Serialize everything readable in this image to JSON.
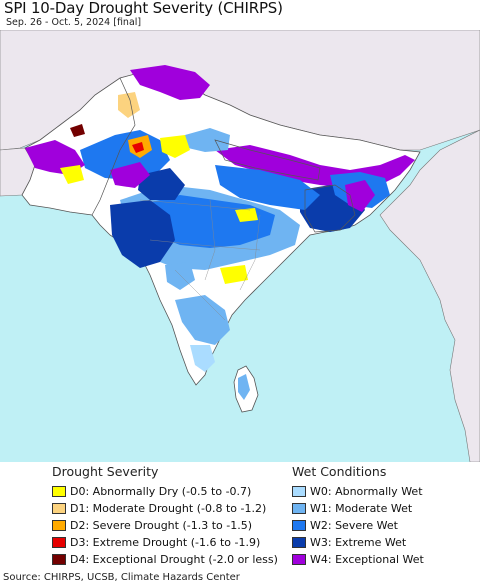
{
  "header": {
    "title": "SPI 10-Day Drought Severity (CHIRPS)",
    "subtitle": "Sep. 26 - Oct. 5, 2024 [final]"
  },
  "legend": {
    "drought": {
      "title": "Drought Severity",
      "items": [
        {
          "code": "D0",
          "label": "D0: Abnormally Dry (-0.5 to -0.7)",
          "color": "#ffff00"
        },
        {
          "code": "D1",
          "label": "D1: Moderate Drought (-0.8 to -1.2)",
          "color": "#fcd37f"
        },
        {
          "code": "D2",
          "label": "D2: Severe Drought (-1.3 to -1.5)",
          "color": "#ffaa00"
        },
        {
          "code": "D3",
          "label": "D3: Extreme Drought (-1.6 to -1.9)",
          "color": "#e60000"
        },
        {
          "code": "D4",
          "label": "D4: Exceptional Drought (-2.0 or less)",
          "color": "#730000"
        }
      ]
    },
    "wet": {
      "title": "Wet Conditions",
      "items": [
        {
          "code": "W0",
          "label": "W0: Abnormally Wet",
          "color": "#aadcff"
        },
        {
          "code": "W1",
          "label": "W1: Moderate Wet",
          "color": "#6fb4f2"
        },
        {
          "code": "W2",
          "label": "W2: Severe Wet",
          "color": "#1e78f0"
        },
        {
          "code": "W3",
          "label": "W3: Extreme Wet",
          "color": "#0a3cab"
        },
        {
          "code": "W4",
          "label": "W4: Exceptional Wet",
          "color": "#a000dc"
        }
      ]
    }
  },
  "map_colors": {
    "sea": "#bff0f5",
    "land_outside": "#ece7ee",
    "land_normal": "#ffffff",
    "border": "#555555"
  },
  "source": "Source: CHIRPS, UCSB, Climate Hazards Center"
}
